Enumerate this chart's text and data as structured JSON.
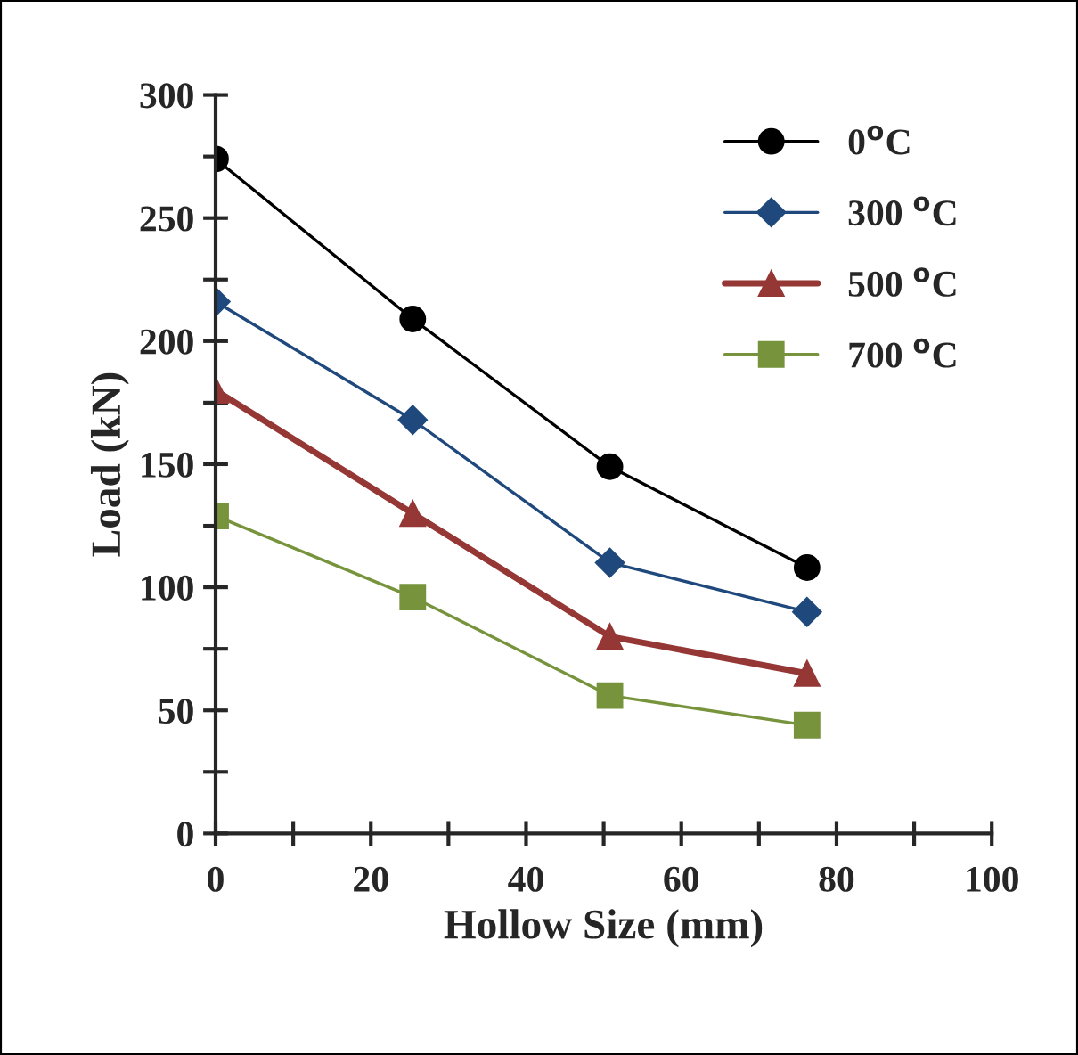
{
  "chart_data": {
    "type": "line",
    "xlabel": "Hollow Size (mm)",
    "ylabel": "Load (kN)",
    "x": [
      0,
      25.4,
      50.8,
      76.2
    ],
    "series": [
      {
        "name": "0$^{o}$C",
        "color": "#000000",
        "marker": "circle",
        "values": [
          274,
          209,
          149,
          108
        ]
      },
      {
        "name": "300 $^{o}$C",
        "color": "#1f497d",
        "marker": "diamond",
        "values": [
          216,
          168,
          110,
          90
        ]
      },
      {
        "name": "500 $^{o}$C",
        "color": "#953735",
        "marker": "triangle",
        "values": [
          180,
          130,
          80,
          65
        ]
      },
      {
        "name": "700 $^{o}$C",
        "color": "#77933c",
        "marker": "square",
        "values": [
          129,
          96,
          56,
          44
        ]
      }
    ],
    "xlim": [
      0,
      100
    ],
    "ylim": [
      0,
      300
    ],
    "xticks": [
      0,
      {
        "value": 10,
        "label": null
      },
      20,
      {
        "value": 30,
        "label": null
      },
      40,
      {
        "value": 50,
        "label": null
      },
      60,
      {
        "value": 70,
        "label": null
      },
      80,
      {
        "value": 90,
        "label": null
      },
      100
    ],
    "yticks": [
      0,
      {
        "value": 25,
        "label": null
      },
      50,
      {
        "value": 75,
        "label": null
      },
      100,
      {
        "value": 125,
        "label": null
      },
      150,
      {
        "value": 175,
        "label": null
      },
      200,
      {
        "value": 225,
        "label": null
      },
      250,
      {
        "value": 275,
        "label": null
      },
      300
    ],
    "grid": false,
    "legend": "top right",
    "line_style": "solid"
  }
}
